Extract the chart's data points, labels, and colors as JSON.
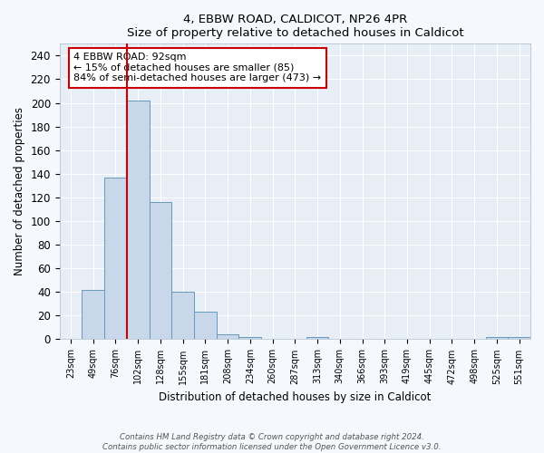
{
  "title1": "4, EBBW ROAD, CALDICOT, NP26 4PR",
  "title2": "Size of property relative to detached houses in Caldicot",
  "xlabel": "Distribution of detached houses by size in Caldicot",
  "ylabel": "Number of detached properties",
  "bar_labels": [
    "23sqm",
    "49sqm",
    "76sqm",
    "102sqm",
    "128sqm",
    "155sqm",
    "181sqm",
    "208sqm",
    "234sqm",
    "260sqm",
    "287sqm",
    "313sqm",
    "340sqm",
    "366sqm",
    "393sqm",
    "419sqm",
    "445sqm",
    "472sqm",
    "498sqm",
    "525sqm",
    "551sqm"
  ],
  "bar_values": [
    0,
    42,
    137,
    202,
    116,
    40,
    23,
    4,
    2,
    0,
    0,
    2,
    0,
    0,
    0,
    0,
    0,
    0,
    0,
    2,
    2
  ],
  "bar_color": "#c8d8ea",
  "bar_edge_color": "#6699bb",
  "vline_x": 2.5,
  "vline_color": "#cc0000",
  "annotation_text": "4 EBBW ROAD: 92sqm\n← 15% of detached houses are smaller (85)\n84% of semi-detached houses are larger (473) →",
  "ylim": [
    0,
    250
  ],
  "yticks": [
    0,
    20,
    40,
    60,
    80,
    100,
    120,
    140,
    160,
    180,
    200,
    220,
    240
  ],
  "fig_bg_color": "#f5f8fc",
  "ax_bg_color": "#e8eef6",
  "grid_color": "#ffffff",
  "footer_line1": "Contains HM Land Registry data © Crown copyright and database right 2024.",
  "footer_line2": "Contains public sector information licensed under the Open Government Licence v3.0."
}
